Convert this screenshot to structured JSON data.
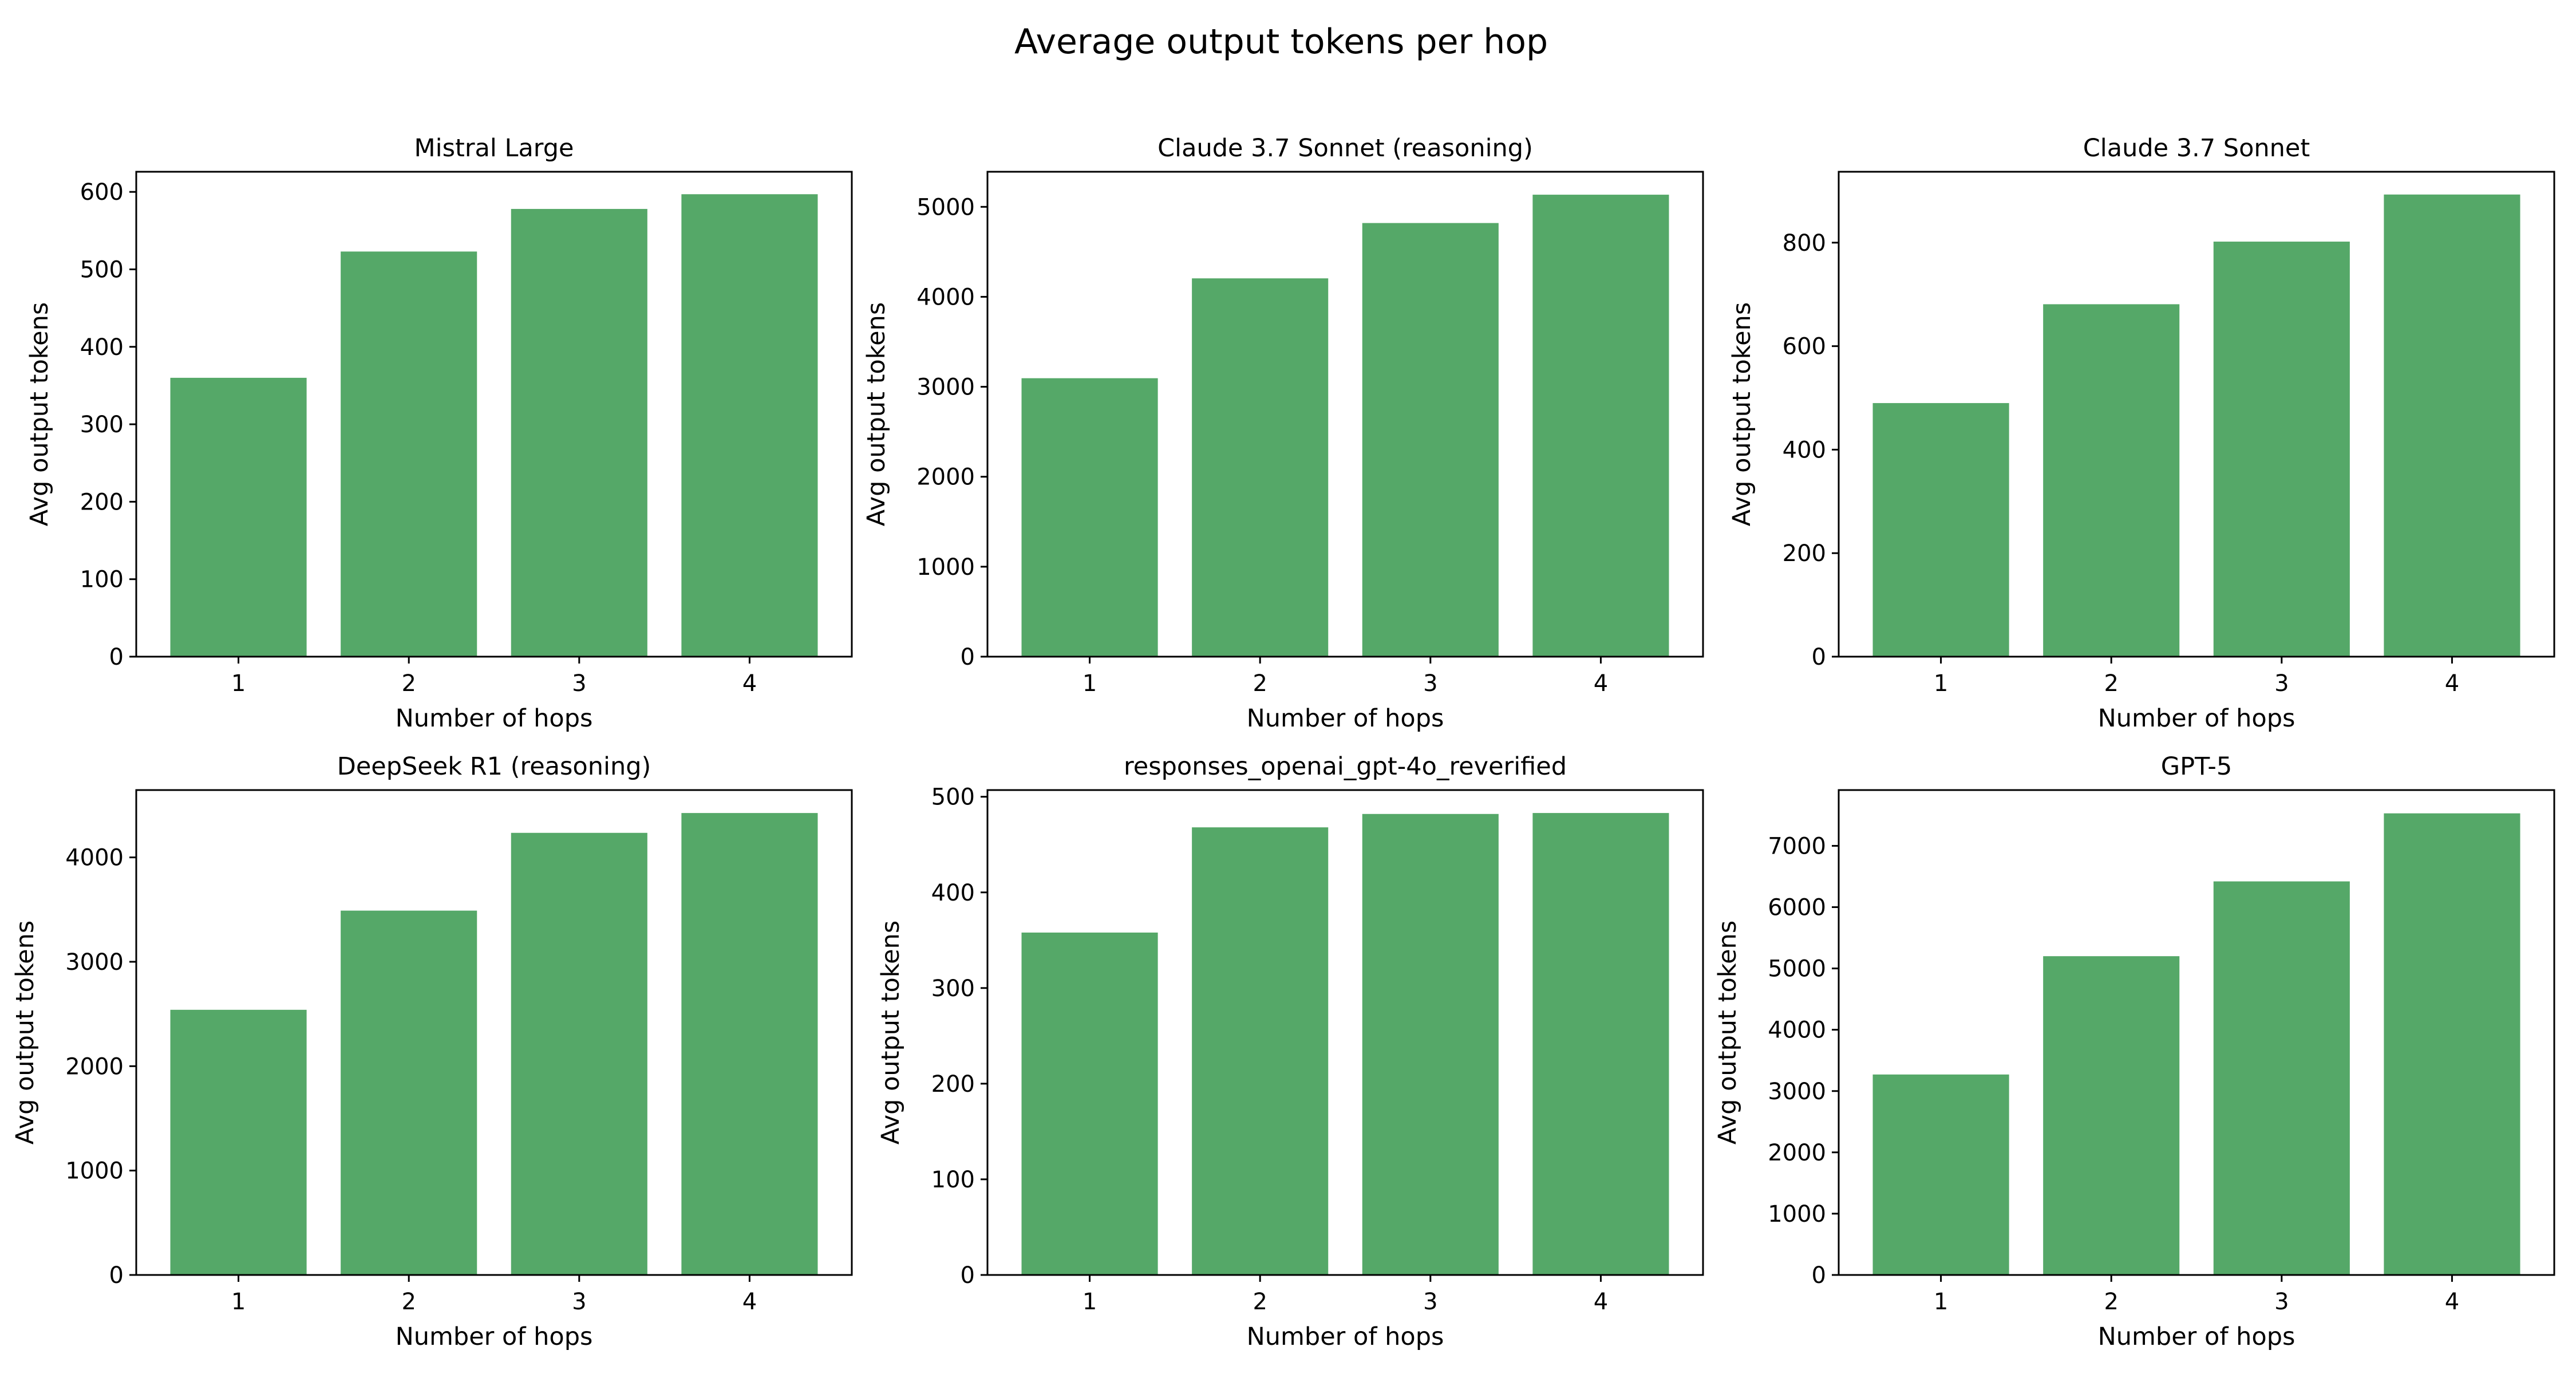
{
  "figure": {
    "title": "Average output tokens per hop"
  },
  "colors": {
    "bar": "#55a868",
    "axis": "#000000",
    "background": "#ffffff"
  },
  "chart_data": [
    {
      "type": "bar",
      "title": "Mistral Large",
      "xlabel": "Number of hops",
      "ylabel": "Avg output tokens",
      "categories": [
        "1",
        "2",
        "3",
        "4"
      ],
      "values": [
        360,
        523,
        578,
        597
      ],
      "ylim": [
        0,
        626
      ],
      "yticks": [
        0,
        100,
        200,
        300,
        400,
        500,
        600
      ],
      "grid": false
    },
    {
      "type": "bar",
      "title": "Claude 3.7 Sonnet (reasoning)",
      "xlabel": "Number of hops",
      "ylabel": "Avg output tokens",
      "categories": [
        "1",
        "2",
        "3",
        "4"
      ],
      "values": [
        3095,
        4205,
        4820,
        5135
      ],
      "ylim": [
        0,
        5390
      ],
      "yticks": [
        0,
        1000,
        2000,
        3000,
        4000,
        5000
      ],
      "grid": false
    },
    {
      "type": "bar",
      "title": "Claude 3.7 Sonnet",
      "xlabel": "Number of hops",
      "ylabel": "Avg output tokens",
      "categories": [
        "1",
        "2",
        "3",
        "4"
      ],
      "values": [
        490,
        681,
        802,
        893
      ],
      "ylim": [
        0,
        937
      ],
      "yticks": [
        0,
        200,
        400,
        600,
        800
      ],
      "grid": false
    },
    {
      "type": "bar",
      "title": "DeepSeek R1 (reasoning)",
      "xlabel": "Number of hops",
      "ylabel": "Avg output tokens",
      "categories": [
        "1",
        "2",
        "3",
        "4"
      ],
      "values": [
        2540,
        3490,
        4235,
        4425
      ],
      "ylim": [
        0,
        4645
      ],
      "yticks": [
        0,
        1000,
        2000,
        3000,
        4000
      ],
      "grid": false
    },
    {
      "type": "bar",
      "title": "responses_openai_gpt-4o_reverified",
      "xlabel": "Number of hops",
      "ylabel": "Avg output tokens",
      "categories": [
        "1",
        "2",
        "3",
        "4"
      ],
      "values": [
        358,
        468,
        482,
        483
      ],
      "ylim": [
        0,
        507
      ],
      "yticks": [
        0,
        100,
        200,
        300,
        400,
        500
      ],
      "grid": false
    },
    {
      "type": "bar",
      "title": "GPT-5",
      "xlabel": "Number of hops",
      "ylabel": "Avg output tokens",
      "categories": [
        "1",
        "2",
        "3",
        "4"
      ],
      "values": [
        3270,
        5200,
        6420,
        7530
      ],
      "ylim": [
        0,
        7910
      ],
      "yticks": [
        0,
        1000,
        2000,
        3000,
        4000,
        5000,
        6000,
        7000
      ],
      "grid": false
    }
  ]
}
